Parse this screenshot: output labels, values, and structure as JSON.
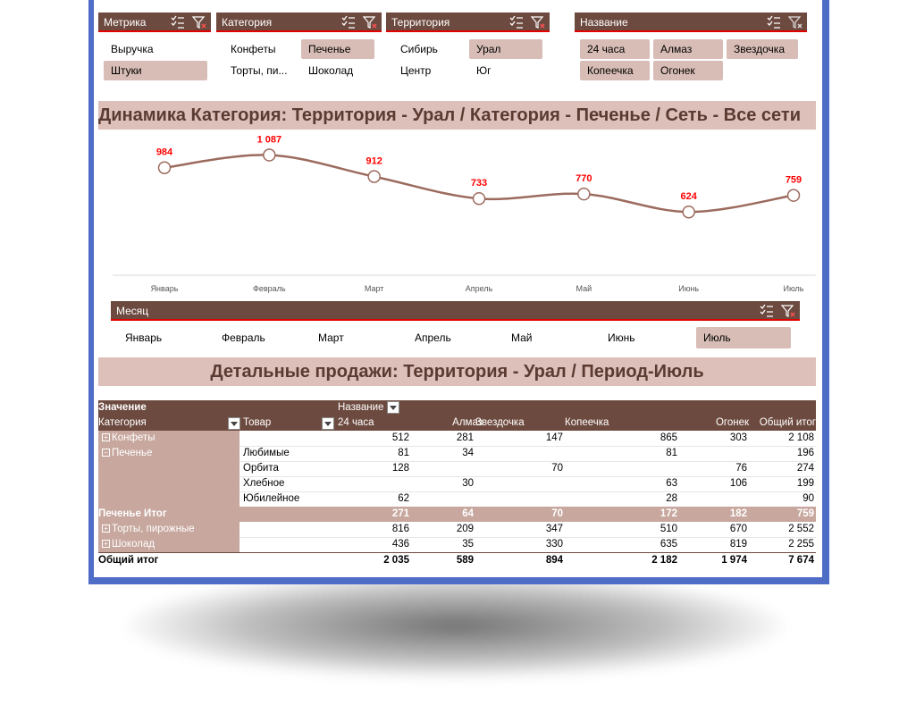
{
  "slicers": {
    "metric": {
      "title": "Метрика",
      "items": [
        {
          "label": "Выручка",
          "selected": false
        },
        {
          "label": "Штуки",
          "selected": true
        }
      ]
    },
    "category": {
      "title": "Категория",
      "items": [
        {
          "label": "Конфеты",
          "selected": false
        },
        {
          "label": "Печенье",
          "selected": true
        },
        {
          "label": "Торты, пи...",
          "selected": false
        },
        {
          "label": "Шоколад",
          "selected": false
        }
      ]
    },
    "territory": {
      "title": "Территория",
      "items": [
        {
          "label": "Сибирь",
          "selected": false
        },
        {
          "label": "Урал",
          "selected": true
        },
        {
          "label": "Центр",
          "selected": false
        },
        {
          "label": "Юг",
          "selected": false
        }
      ]
    },
    "name": {
      "title": "Название",
      "items": [
        {
          "label": "24 часа",
          "selected": true
        },
        {
          "label": "Алмаз",
          "selected": true
        },
        {
          "label": "Звездочка",
          "selected": true
        },
        {
          "label": "Копеечка",
          "selected": true
        },
        {
          "label": "Огонек",
          "selected": true
        }
      ]
    },
    "month": {
      "title": "Месяц",
      "items": [
        {
          "label": "Январь",
          "selected": false
        },
        {
          "label": "Февраль",
          "selected": false
        },
        {
          "label": "Март",
          "selected": false
        },
        {
          "label": "Апрель",
          "selected": false
        },
        {
          "label": "Май",
          "selected": false
        },
        {
          "label": "Июнь",
          "selected": false
        },
        {
          "label": "Июль",
          "selected": true
        }
      ]
    }
  },
  "chart_data": {
    "type": "line",
    "title": "Динамика Категория: Территория - Урал / Категория - Печенье / Сеть - Все сети",
    "categories": [
      "Январь",
      "Февраль",
      "Март",
      "Апрель",
      "Май",
      "Июнь",
      "Июль"
    ],
    "values": [
      984,
      1087,
      912,
      733,
      770,
      624,
      759
    ],
    "value_labels": [
      "984",
      "1 087",
      "912",
      "733",
      "770",
      "624",
      "759"
    ],
    "ylim": [
      0,
      1200
    ],
    "grid": false,
    "legend": "none",
    "line_color": "#9c6b5e",
    "label_color": "#ff0000"
  },
  "pivot": {
    "title": "Детальные продажи: Территория - Урал / Период-Июль",
    "header": {
      "value": "Значение",
      "name": "Название",
      "category": "Категория",
      "product": "Товар",
      "columns": [
        "24 часа",
        "Алмаз",
        "Звездочка",
        "Копеечка",
        "Огонек",
        "Общий итог"
      ]
    },
    "rows": [
      {
        "type": "cat",
        "toggle": "+",
        "category": "Конфеты",
        "product": "",
        "values": [
          "512",
          "281",
          "147",
          "865",
          "303",
          "2 108"
        ]
      },
      {
        "type": "cat",
        "toggle": "−",
        "category": "Печенье",
        "product": "Любимые",
        "values": [
          "81",
          "34",
          "",
          "81",
          "",
          "196"
        ]
      },
      {
        "type": "item",
        "category": "",
        "product": "Орбита",
        "values": [
          "128",
          "",
          "70",
          "",
          "76",
          "274"
        ]
      },
      {
        "type": "item",
        "category": "",
        "product": "Хлебное",
        "values": [
          "",
          "30",
          "",
          "63",
          "106",
          "199"
        ]
      },
      {
        "type": "item",
        "category": "",
        "product": "Юбилейное",
        "values": [
          "62",
          "",
          "",
          "28",
          "",
          "90"
        ]
      },
      {
        "type": "sub",
        "category": "Печенье Итог",
        "product": "",
        "values": [
          "271",
          "64",
          "70",
          "172",
          "182",
          "759"
        ]
      },
      {
        "type": "cat",
        "toggle": "+",
        "category": "Торты, пирожные",
        "product": "",
        "values": [
          "816",
          "209",
          "347",
          "510",
          "670",
          "2 552"
        ]
      },
      {
        "type": "cat",
        "toggle": "+",
        "category": "Шоколад",
        "product": "",
        "values": [
          "436",
          "35",
          "330",
          "635",
          "819",
          "2 255"
        ]
      },
      {
        "type": "tot",
        "category": "Общий итог",
        "product": "",
        "values": [
          "2 035",
          "589",
          "894",
          "2 182",
          "1 974",
          "7 674"
        ]
      }
    ]
  }
}
